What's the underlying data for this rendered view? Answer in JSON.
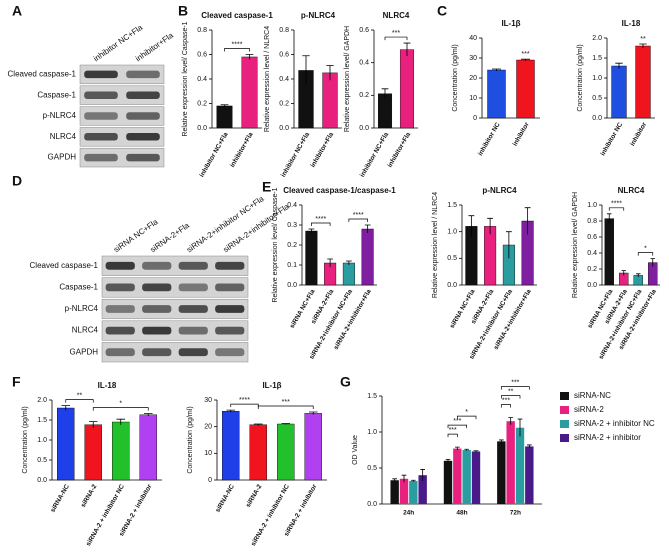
{
  "panel_labels": [
    "A",
    "B",
    "C",
    "D",
    "E",
    "F",
    "G"
  ],
  "blots": [
    {
      "columns": [
        "inhibitor NC+Fla",
        "inhibitor+Fla"
      ],
      "rows": [
        "Cleaved caspase-1",
        "Caspase-1",
        "p-NLRC4",
        "NLRC4",
        "GAPDH"
      ]
    },
    {
      "columns": [
        "siRNA NC+Fla",
        "siRNA-2+Fla",
        "siRNA-2+inhibitor NC+Fla",
        "siRNA-2+inhibitor+Fla"
      ],
      "rows": [
        "Cleaved caspase-1",
        "Caspase-1",
        "p-NLRC4",
        "NLRC4",
        "GAPDH"
      ]
    }
  ],
  "chart_data": [
    {
      "type": "bar",
      "title": "Cleaved caspase-1",
      "y_label": "Relative expression level/ Caspase-1",
      "categories": [
        "inhibitor NC+Fla",
        "inhibitor+Fla"
      ],
      "values": [
        0.18,
        0.58
      ],
      "errors": [
        0.01,
        0.02
      ],
      "colors": [
        "#111111",
        "#e8217e"
      ],
      "ylim": [
        0,
        0.8
      ],
      "yticks": [
        {
          "value": 0,
          "label": "0.0"
        },
        0.2,
        0.4,
        0.6,
        0.8
      ],
      "annotations": [
        {
          "text": "****",
          "between": [
            "inhibitor NC+Fla",
            "inhibitor+Fla"
          ]
        }
      ]
    },
    {
      "type": "bar",
      "title": "p-NLRC4",
      "y_label": "Relative expression level / NLRC4",
      "categories": [
        "inhibitor NC+Fla",
        "inhibitor+Fla"
      ],
      "values": [
        0.47,
        0.45
      ],
      "errors": [
        0.12,
        0.06
      ],
      "colors": [
        "#111111",
        "#e8217e"
      ],
      "ylim": [
        0,
        0.8
      ],
      "yticks": [
        {
          "value": 0,
          "label": "0.0"
        },
        0.2,
        0.4,
        0.6,
        0.8
      ],
      "annotations": []
    },
    {
      "type": "bar",
      "title": "NLRC4",
      "y_label": "Relative expression level/ GAPDH",
      "categories": [
        "inhibitor NC+Fla",
        "inhibitor+Fla"
      ],
      "values": [
        0.21,
        0.48
      ],
      "errors": [
        0.03,
        0.04
      ],
      "colors": [
        "#111111",
        "#e8217e"
      ],
      "ylim": [
        0,
        0.6
      ],
      "yticks": [
        {
          "value": 0,
          "label": "0.0"
        },
        0.2,
        0.4,
        0.6
      ],
      "annotations": [
        {
          "text": "***",
          "between": [
            "inhibitor NC+Fla",
            "inhibitor+Fla"
          ]
        }
      ]
    },
    {
      "type": "bar",
      "title": "IL-1β",
      "y_label": "Concentration (pg/ml)",
      "categories": [
        "inhibitor NC",
        "inhibitor"
      ],
      "values": [
        24,
        29
      ],
      "errors": [
        0.5,
        0.4
      ],
      "colors": [
        "#1f4fe0",
        "#f0141e"
      ],
      "ylim": [
        0,
        40
      ],
      "yticks": [
        0,
        10,
        20,
        30,
        40
      ],
      "annotations": [
        {
          "text": "***",
          "at": "inhibitor"
        }
      ]
    },
    {
      "type": "bar",
      "title": "IL-18",
      "y_label": "Concentration (pg/ml)",
      "categories": [
        "inhibitor NC",
        "inhibitor"
      ],
      "values": [
        1.3,
        1.8
      ],
      "errors": [
        0.07,
        0.05
      ],
      "colors": [
        "#1f4fe0",
        "#f0141e"
      ],
      "ylim": [
        0,
        2.0
      ],
      "yticks": [
        {
          "value": 0,
          "label": "0.0"
        },
        0.5,
        {
          "value": 1,
          "label": "1.0"
        },
        1.5,
        {
          "value": 2,
          "label": "2.0"
        }
      ],
      "annotations": [
        {
          "text": "**",
          "at": "inhibitor"
        }
      ]
    },
    {
      "type": "bar",
      "title": "Cleaved caspase-1/caspase-1",
      "y_label": "Relative expression level/ Caspase-1",
      "categories": [
        "siRNA NC+Fla",
        "siRNA-2+Fla",
        "siRNA-2+inhibitor NC+Fla",
        "siRNA-2+inhibitor+Fla"
      ],
      "values": [
        0.27,
        0.11,
        0.11,
        0.28
      ],
      "errors": [
        0.01,
        0.02,
        0.01,
        0.02
      ],
      "colors": [
        "#111111",
        "#e8217e",
        "#2a9da0",
        "#7e1fa0"
      ],
      "ylim": [
        0,
        0.4
      ],
      "yticks": [
        {
          "value": 0,
          "label": "0.0"
        },
        0.1,
        0.2,
        0.3,
        0.4
      ],
      "annotations": [
        {
          "text": "****",
          "between": [
            "siRNA NC+Fla",
            "siRNA-2+Fla"
          ]
        },
        {
          "text": "****",
          "between": [
            "siRNA-2+inhibitor NC+Fla",
            "siRNA-2+inhibitor+Fla"
          ]
        }
      ]
    },
    {
      "type": "bar",
      "title": "p-NLRC4",
      "y_label": "Relative expression level / NLRC4",
      "categories": [
        "siRNA NC+Fla",
        "siRNA-2+Fla",
        "siRNA-2+inhibitor NC+Fla",
        "siRNA-2+inhibitor+Fla"
      ],
      "values": [
        1.1,
        1.1,
        0.75,
        1.2
      ],
      "errors": [
        0.2,
        0.15,
        0.25,
        0.25
      ],
      "colors": [
        "#111111",
        "#e8217e",
        "#2a9da0",
        "#7e1fa0"
      ],
      "ylim": [
        0,
        1.5
      ],
      "yticks": [
        {
          "value": 0,
          "label": "0.0"
        },
        0.5,
        {
          "value": 1,
          "label": "1.0"
        },
        1.5
      ],
      "annotations": []
    },
    {
      "type": "bar",
      "title": "NLRC4",
      "y_label": "Relative expression level/ GAPDH",
      "categories": [
        "siRNA NC+Fla",
        "siRNA-2+Fla",
        "siRNA-2+inhibitor NC+Fla",
        "siRNA-2+inhibitor+Fla"
      ],
      "values": [
        0.83,
        0.15,
        0.12,
        0.28
      ],
      "errors": [
        0.06,
        0.03,
        0.02,
        0.05
      ],
      "colors": [
        "#111111",
        "#e8217e",
        "#2a9da0",
        "#7e1fa0"
      ],
      "ylim": [
        0,
        1.0
      ],
      "yticks": [
        {
          "value": 0,
          "label": "0.0"
        },
        0.2,
        0.4,
        0.6,
        0.8,
        {
          "value": 1,
          "label": "1.0"
        }
      ],
      "annotations": [
        {
          "text": "****",
          "between": [
            "siRNA NC+Fla",
            "siRNA-2+Fla"
          ]
        },
        {
          "text": "*",
          "between": [
            "siRNA-2+inhibitor NC+Fla",
            "siRNA-2+inhibitor+Fla"
          ]
        }
      ]
    },
    {
      "type": "bar",
      "title": "IL-18",
      "y_label": "Concentration (pg/ml)",
      "categories": [
        "siRNA-NC",
        "siRNA-2",
        "siRNA-2 + inhibitor NC",
        "siRNA-2 + inhibitor"
      ],
      "values": [
        1.8,
        1.38,
        1.45,
        1.63
      ],
      "errors": [
        0.06,
        0.08,
        0.07,
        0.03
      ],
      "colors": [
        "#1f3fe8",
        "#f0141e",
        "#22c02a",
        "#b040f0"
      ],
      "ylim": [
        0,
        2.0
      ],
      "yticks": [
        {
          "value": 0,
          "label": "0.0"
        },
        0.5,
        {
          "value": 1,
          "label": "1.0"
        },
        1.5,
        {
          "value": 2,
          "label": "2.0"
        }
      ],
      "annotations": [
        {
          "text": "**",
          "between": [
            "siRNA-NC",
            "siRNA-2"
          ]
        },
        {
          "text": "*",
          "between": [
            "siRNA-2",
            "siRNA-2 + inhibitor"
          ]
        }
      ]
    },
    {
      "type": "bar",
      "title": "IL-1β",
      "y_label": "Concentration (pg/ml)",
      "categories": [
        "siRNA-NC",
        "siRNA-2",
        "siRNA-2 + inhibitor NC",
        "siRNA-2 + inhibitor"
      ],
      "values": [
        25.8,
        20.7,
        21,
        25
      ],
      "errors": [
        0.4,
        0.3,
        0.2,
        0.5
      ],
      "colors": [
        "#1f3fe8",
        "#f0141e",
        "#22c02a",
        "#b040f0"
      ],
      "ylim": [
        0,
        30
      ],
      "yticks": [
        0,
        10,
        20,
        30
      ],
      "annotations": [
        {
          "text": "****",
          "between": [
            "siRNA-NC",
            "siRNA-2"
          ]
        },
        {
          "text": "***",
          "between": [
            "siRNA-2",
            "siRNA-2 + inhibitor"
          ]
        }
      ]
    },
    {
      "type": "grouped_bar",
      "y_label": "OD Value",
      "categories": [
        "24h",
        "48h",
        "72h"
      ],
      "series": [
        {
          "name": "siRNA-NC",
          "color": "#111111",
          "values": [
            0.33,
            0.6,
            0.87
          ],
          "errors": [
            0.02,
            0.02,
            0.02
          ]
        },
        {
          "name": "siRNA-2",
          "color": "#e8217e",
          "values": [
            0.35,
            0.77,
            1.15
          ],
          "errors": [
            0.05,
            0.02,
            0.05
          ]
        },
        {
          "name": "siRNA-2 + inhibitor NC",
          "color": "#2a9da0",
          "values": [
            0.32,
            0.75,
            1.06
          ],
          "errors": [
            0.01,
            0.01,
            0.12
          ]
        },
        {
          "name": "siRNA-2 + inhibitor",
          "color": "#4a1a8a",
          "values": [
            0.4,
            0.73,
            0.8
          ],
          "errors": [
            0.08,
            0.01,
            0.02
          ]
        }
      ],
      "ylim": [
        0,
        1.5
      ],
      "yticks": [
        {
          "value": 0,
          "label": "0.0"
        },
        0.5,
        {
          "value": 1,
          "label": "1.0"
        },
        1.5
      ],
      "legend": "right",
      "annotations": [
        {
          "text": "***",
          "group": "48h",
          "between": [
            "siRNA-NC",
            "siRNA-2"
          ]
        },
        {
          "text": "***",
          "group": "48h",
          "between": [
            "siRNA-NC",
            "siRNA-2 + inhibitor NC"
          ]
        },
        {
          "text": "*",
          "group": "48h",
          "between": [
            "siRNA-2",
            "siRNA-2 + inhibitor"
          ]
        },
        {
          "text": "***",
          "group": "72h",
          "between": [
            "siRNA-NC",
            "siRNA-2"
          ]
        },
        {
          "text": "**",
          "group": "72h",
          "between": [
            "siRNA-NC",
            "siRNA-2 + inhibitor NC"
          ]
        },
        {
          "text": "***",
          "group": "72h",
          "between": [
            "siRNA-NC",
            "siRNA-2 + inhibitor"
          ]
        }
      ]
    }
  ]
}
